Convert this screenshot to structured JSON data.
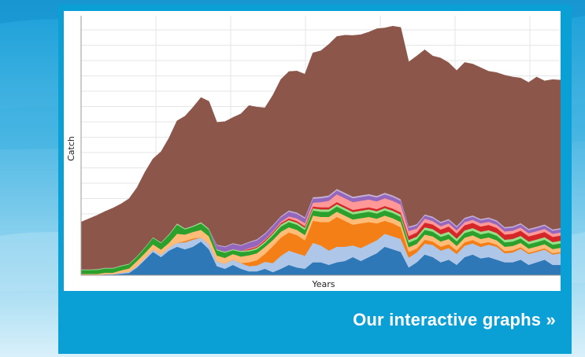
{
  "link": {
    "label": "Our interactive graphs »"
  },
  "chart_data": {
    "type": "area",
    "stacked": true,
    "xlabel": "Years",
    "ylabel": "Catch",
    "grid": true,
    "legend": "none",
    "ylim": [
      0,
      100
    ],
    "x": [
      0,
      1,
      2,
      3,
      4,
      5,
      6,
      7,
      8,
      9,
      10,
      11,
      12,
      13,
      14,
      15,
      16,
      17,
      18,
      19,
      20,
      21,
      22,
      23,
      24,
      25,
      26,
      27,
      28,
      29,
      30,
      31,
      32,
      33,
      34,
      35,
      36,
      37,
      38,
      39,
      40,
      41,
      42,
      43,
      44,
      45,
      46,
      47,
      48,
      49,
      50,
      51,
      52,
      53,
      54,
      55,
      56,
      57,
      58,
      59,
      60
    ],
    "series": [
      {
        "color": "#2f78b8",
        "values": [
          0,
          0,
          0,
          0.3,
          0.3,
          0.6,
          0.9,
          3,
          6,
          9,
          7,
          9.5,
          11,
          10,
          11,
          13,
          10,
          3.5,
          2.5,
          4,
          2.5,
          1.5,
          1.5,
          2.5,
          1.2,
          2.5,
          4,
          3,
          2.5,
          5,
          5,
          4,
          5,
          5.5,
          7,
          5.5,
          7,
          8.5,
          11,
          10,
          9,
          3,
          5,
          8,
          7,
          5,
          6,
          4,
          7,
          8,
          6.5,
          7,
          6,
          5,
          5,
          6,
          4,
          5,
          6,
          4,
          4
        ]
      },
      {
        "color": "#aec7e8",
        "values": [
          0,
          0,
          0,
          0.2,
          0.2,
          0.4,
          0.5,
          0.5,
          0.6,
          0.9,
          0.9,
          1.2,
          1.5,
          2.7,
          2.7,
          1.5,
          2,
          1.8,
          2,
          2,
          2.2,
          2,
          2.3,
          2.7,
          3.5,
          5,
          5.5,
          5.5,
          5,
          7.5,
          6.5,
          5.5,
          6,
          5.5,
          4.5,
          5,
          5,
          5,
          5,
          5,
          5,
          3.8,
          3.8,
          4.2,
          4.7,
          4.5,
          4.5,
          4.2,
          4.4,
          4.3,
          4.4,
          4.8,
          5,
          3.5,
          3.8,
          4.2,
          4.2,
          4,
          3.9,
          4,
          4.5
        ]
      },
      {
        "color": "#f57f17",
        "values": [
          0,
          0,
          0,
          0,
          0,
          0,
          0,
          0,
          0,
          0,
          0,
          0,
          0,
          0.5,
          0.5,
          0,
          0,
          0,
          0,
          0,
          0,
          1.5,
          2,
          3,
          6.5,
          7,
          7,
          7,
          6,
          8.5,
          9,
          11,
          11.5,
          10,
          8,
          9.5,
          8.5,
          6.5,
          5,
          5,
          4.5,
          2.2,
          1.5,
          1.5,
          1.3,
          1.5,
          1.5,
          1.3,
          1.3,
          1.3,
          1.3,
          1,
          0.8,
          0.8,
          0.8,
          0.6,
          0.5,
          0.5,
          0.5,
          0.5,
          0.5
        ]
      },
      {
        "color": "#ffbb78",
        "values": [
          0.5,
          0.5,
          0.5,
          0.5,
          0.5,
          0.9,
          1.2,
          2,
          2,
          2,
          2,
          1.8,
          3.5,
          2.5,
          2.5,
          3,
          3,
          2.3,
          2.2,
          2.2,
          2.5,
          2.7,
          2.7,
          2.7,
          2.4,
          2.3,
          2,
          2,
          2,
          2,
          2,
          2,
          2,
          2,
          2,
          2,
          2,
          1.8,
          2,
          2,
          2,
          1.8,
          1.8,
          2,
          2,
          2,
          2,
          1.8,
          1.8,
          1.8,
          1.8,
          1.8,
          1.7,
          1.7,
          1.7,
          1.7,
          1.6,
          1.6,
          1.6,
          1.6,
          1.6
        ]
      },
      {
        "color": "#2ca02c",
        "values": [
          1.5,
          1.5,
          1.6,
          1.6,
          1.6,
          1.6,
          1.6,
          1.6,
          2,
          2.5,
          2.5,
          3,
          3.5,
          2,
          2,
          2.5,
          2.5,
          2,
          2,
          1.5,
          1.8,
          1.5,
          1.5,
          1.5,
          1.8,
          2,
          2,
          2,
          2,
          2,
          2,
          2,
          2,
          2,
          2,
          2,
          2,
          2,
          2,
          2,
          2,
          1.8,
          1.8,
          1.8,
          1.8,
          1.8,
          1.8,
          1.8,
          1.8,
          1.8,
          1.8,
          1.8,
          1.8,
          1.7,
          1.7,
          1.7,
          1.7,
          1.7,
          1.7,
          1.7,
          1.7
        ]
      },
      {
        "color": "#98df8a",
        "values": [
          0.3,
          0.3,
          0.3,
          0.3,
          0.3,
          0.3,
          0.3,
          0.3,
          0.3,
          0.3,
          0.3,
          0.4,
          0.5,
          0.4,
          0.4,
          0.5,
          0.5,
          0.4,
          0.4,
          0.4,
          0.4,
          0.5,
          0.6,
          0.6,
          0.7,
          0.8,
          0.8,
          0.8,
          0.8,
          0.8,
          0.9,
          0.9,
          0.9,
          0.9,
          0.9,
          0.9,
          0.9,
          0.9,
          0.9,
          0.9,
          0.9,
          1,
          1,
          1,
          1,
          1,
          1,
          1,
          1,
          1,
          1,
          1,
          1,
          1,
          1,
          1,
          1,
          1,
          1,
          1,
          1
        ]
      },
      {
        "color": "#d62728",
        "values": [
          0,
          0,
          0,
          0,
          0,
          0,
          0,
          0,
          0,
          0,
          0,
          0,
          0,
          0,
          0,
          0,
          0,
          0,
          0,
          0,
          0,
          0.4,
          0.4,
          0.5,
          0.5,
          0.5,
          0.6,
          0.6,
          0.6,
          0.7,
          0.8,
          0.8,
          0.8,
          0.8,
          0.8,
          0.8,
          0.8,
          0.8,
          0.8,
          0.8,
          0.8,
          1.5,
          1.6,
          1.8,
          1.8,
          1.8,
          2,
          2,
          2,
          2,
          2,
          2,
          2,
          2,
          2,
          2,
          2,
          2,
          2,
          2,
          2
        ]
      },
      {
        "color": "#ff9896",
        "values": [
          0,
          0,
          0,
          0,
          0,
          0,
          0,
          0,
          0,
          0,
          0,
          0,
          0,
          0,
          0,
          0,
          0,
          0,
          0,
          0,
          0,
          0.3,
          0.3,
          0.3,
          0.4,
          0.5,
          0.8,
          1,
          1.2,
          1.5,
          2,
          2.5,
          3,
          3,
          3,
          3,
          3,
          3,
          3,
          3,
          3,
          2,
          1.5,
          1.5,
          1.3,
          1.3,
          1.2,
          1.2,
          1.2,
          1.2,
          1.2,
          1.2,
          1.2,
          1.2,
          1.2,
          1.2,
          1.2,
          1.2,
          1.2,
          1.2,
          1.2
        ]
      },
      {
        "color": "#9467bd",
        "values": [
          0,
          0,
          0,
          0,
          0,
          0,
          0,
          0,
          0,
          0,
          0,
          0,
          0,
          0,
          0,
          0,
          0,
          1.5,
          1.8,
          2,
          2,
          2.2,
          2.2,
          2,
          2,
          1.8,
          1.8,
          1.8,
          1.8,
          1.5,
          1.5,
          1.5,
          1.5,
          1.5,
          1.5,
          1.5,
          1.5,
          1.5,
          1.5,
          1.5,
          1.5,
          1.2,
          1.2,
          1.2,
          1.2,
          1.2,
          1.2,
          1.2,
          1.2,
          1.2,
          1.2,
          1.2,
          1.2,
          1.2,
          1.2,
          1.2,
          1.2,
          1.2,
          1.2,
          1.2,
          1.2
        ]
      },
      {
        "color": "#c5b0d5",
        "values": [
          0,
          0,
          0,
          0,
          0,
          0,
          0,
          0,
          0,
          0,
          0,
          0,
          0,
          0,
          0,
          0,
          0,
          0.3,
          0.3,
          0.3,
          0.3,
          0.3,
          0.4,
          0.4,
          0.4,
          0.4,
          0.5,
          0.5,
          0.5,
          0.6,
          0.6,
          0.6,
          0.6,
          0.6,
          0.6,
          0.6,
          0.6,
          0.6,
          0.6,
          0.6,
          0.6,
          0.5,
          0.5,
          0.5,
          0.5,
          0.5,
          0.5,
          0.5,
          0.5,
          0.5,
          0.5,
          0.5,
          0.5,
          0.5,
          0.5,
          0.5,
          0.5,
          0.5,
          0.5,
          0.5,
          0.5
        ]
      },
      {
        "color": "#8c564b",
        "values": [
          18.2,
          19.5,
          20.7,
          21.7,
          23,
          23.7,
          25,
          26.4,
          28.9,
          30.2,
          34.9,
          37,
          39.5,
          43.2,
          45.6,
          48,
          49,
          47.1,
          48,
          48.4,
          50.5,
          52.5,
          50.9,
          48.3,
          50,
          52.7,
          53.5,
          54.5,
          55.1,
          55.6,
          56.2,
          58.2,
          58.7,
          60.7,
          62.1,
          61.9,
          62.4,
          64.4,
          63.5,
          65.2,
          66.2,
          63.4,
          64.8,
          63.4,
          61.9,
          63.1,
          60.2,
          59.9,
          59.8,
          58.3,
          58.3,
          56.3,
          56.9,
          58.5,
          57.5,
          55.9,
          56.4,
          57.7,
          55.3,
          57.7,
          57
        ]
      }
    ]
  }
}
